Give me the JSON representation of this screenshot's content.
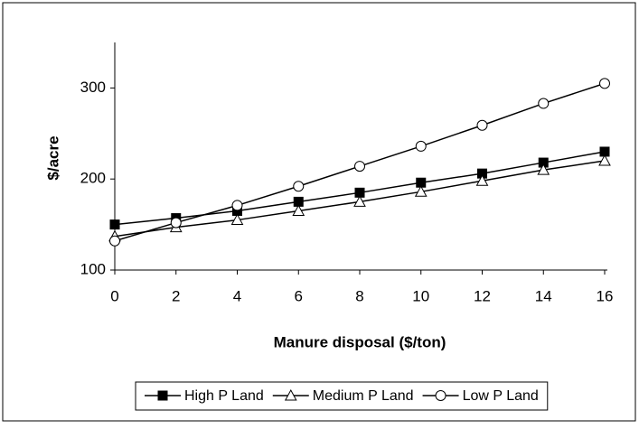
{
  "chart_data": {
    "type": "line",
    "x_label": "Manure disposal ($/ton)",
    "y_label": "$/acre",
    "x": [
      0,
      2,
      4,
      6,
      8,
      10,
      12,
      14,
      16
    ],
    "xlim": [
      0,
      16
    ],
    "xticks": [
      0,
      2,
      4,
      6,
      8,
      10,
      12,
      14,
      16
    ],
    "ylim": [
      100,
      350
    ],
    "yticks": [
      100,
      200,
      300
    ],
    "grid": false,
    "legend": "bottom",
    "series": [
      {
        "name": "High P Land",
        "color": "#000000",
        "marker": "square",
        "values": [
          150,
          157,
          165,
          175,
          185,
          196,
          206,
          218,
          230
        ]
      },
      {
        "name": "Medium P Land",
        "color": "#000000",
        "marker": "triangle",
        "values": [
          137,
          147,
          155,
          165,
          175,
          186,
          198,
          210,
          220
        ]
      },
      {
        "name": "Low  P Land",
        "color": "#000000",
        "marker": "circle",
        "values": [
          132,
          152,
          171,
          192,
          214,
          236,
          259,
          283,
          305
        ]
      }
    ]
  }
}
